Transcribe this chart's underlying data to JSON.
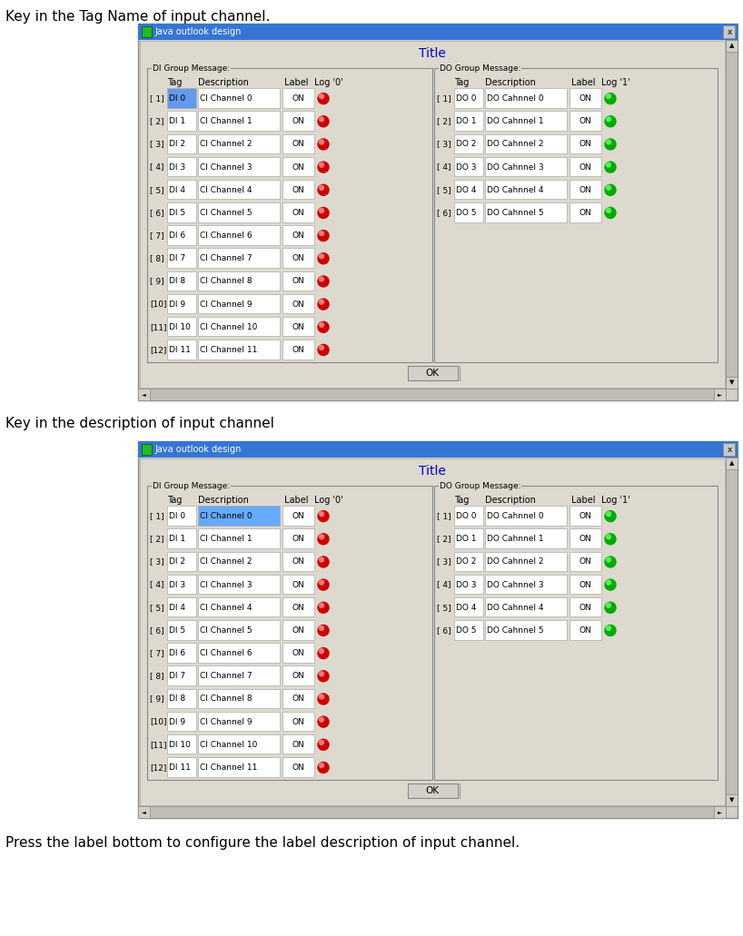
{
  "text1": "Key in the Tag Name of input channel.",
  "text2": "Key in the description of input channel",
  "text3": "Press the label bottom to configure the label description of input channel.",
  "window_title": "Java outlook design",
  "dialog_title": "Title",
  "di_group": "DI Group Message:",
  "do_group": "DO Group Message:",
  "di_rows": [
    [
      "[ 1]",
      "DI 0",
      "CI Channel 0",
      "ON"
    ],
    [
      "[ 2]",
      "DI 1",
      "CI Channel 1",
      "ON"
    ],
    [
      "[ 3]",
      "DI 2",
      "CI Channel 2",
      "ON"
    ],
    [
      "[ 4]",
      "DI 3",
      "CI Channel 3",
      "ON"
    ],
    [
      "[ 5]",
      "DI 4",
      "CI Channel 4",
      "ON"
    ],
    [
      "[ 6]",
      "DI 5",
      "CI Channel 5",
      "ON"
    ],
    [
      "[ 7]",
      "DI 6",
      "CI Channel 6",
      "ON"
    ],
    [
      "[ 8]",
      "DI 7",
      "CI Channel 7",
      "ON"
    ],
    [
      "[ 9]",
      "DI 8",
      "CI Channel 8",
      "ON"
    ],
    [
      "[10]",
      "DI 9",
      "CI Channel 9",
      "ON"
    ],
    [
      "[11]",
      "DI 10",
      "CI Channel 10",
      "ON"
    ],
    [
      "[12]",
      "DI 11",
      "CI Channel 11",
      "ON"
    ]
  ],
  "do_rows": [
    [
      "[ 1]",
      "DO 0",
      "DO Cahnnel 0",
      "ON"
    ],
    [
      "[ 2]",
      "DO 1",
      "DO Cahnnel 1",
      "ON"
    ],
    [
      "[ 3]",
      "DO 2",
      "DO Cahnnel 2",
      "ON"
    ],
    [
      "[ 4]",
      "DO 3",
      "DO Cahnnel 3",
      "ON"
    ],
    [
      "[ 5]",
      "DO 4",
      "DO Cahnnel 4",
      "ON"
    ],
    [
      "[ 6]",
      "DO 5",
      "DO Cahnnel 5",
      "ON"
    ]
  ],
  "bg_color": "#d4d0c8",
  "titlebar_color": "#3575d4",
  "content_bg": "#ddd9ce",
  "cell_bg": "#ffffff",
  "text_color": "#000000",
  "title_color": "#0000cc",
  "ok_button_text": "OK",
  "tag_highlight_color": "#6699ee",
  "desc_highlight_color": "#66aaff"
}
